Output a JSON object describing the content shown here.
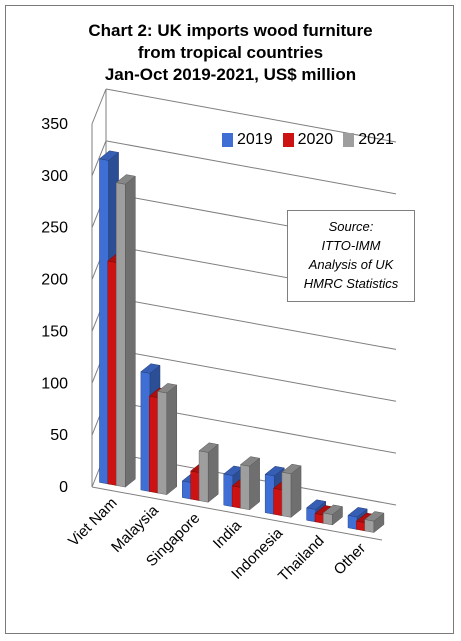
{
  "chart_data": {
    "type": "bar",
    "title_lines": [
      "Chart 2: UK imports wood furniture",
      "from tropical countries",
      "Jan-Oct 2019-2021, US$ million"
    ],
    "categories": [
      "Viet Nam",
      "Malaysia",
      "Singapore",
      "India",
      "Indonesia",
      "Thailand",
      "Other"
    ],
    "series": [
      {
        "name": "2019",
        "color": "#3f6fd4",
        "values": [
          312,
          114,
          16,
          30,
          37,
          12,
          12
        ]
      },
      {
        "name": "2020",
        "color": "#cc1212",
        "values": [
          215,
          92,
          27,
          20,
          25,
          8,
          8
        ]
      },
      {
        "name": "2021",
        "color": "#9e9e9e",
        "values": [
          292,
          98,
          48,
          42,
          42,
          10,
          11
        ]
      }
    ],
    "y_ticks": [
      "0",
      "50",
      "100",
      "150",
      "200",
      "250",
      "300",
      "350"
    ],
    "ylim": [
      0,
      350
    ],
    "grid": true,
    "legend_position": "top-right",
    "annotation_lines": [
      "Source:",
      "ITTO-IMM",
      "Analysis of UK",
      "HMRC Statistics"
    ]
  }
}
